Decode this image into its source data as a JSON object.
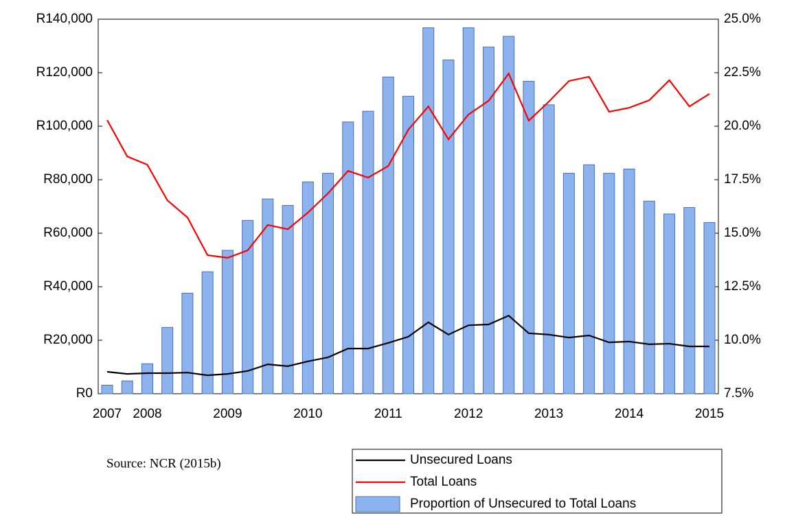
{
  "chart_data": {
    "type": "bar",
    "source": "Source: NCR (2015b)",
    "categories": [
      "2007",
      null,
      "2008",
      null,
      null,
      null,
      "2009",
      null,
      null,
      null,
      "2010",
      null,
      null,
      null,
      "2011",
      null,
      null,
      null,
      "2012",
      null,
      null,
      null,
      "2013",
      null,
      null,
      null,
      "2014",
      null,
      null,
      null,
      "2015"
    ],
    "ylim": [
      0,
      140000
    ],
    "yticks": [
      {
        "value": 0,
        "label": "R0"
      },
      {
        "value": 20000,
        "label": "R20,000"
      },
      {
        "value": 40000,
        "label": "R40,000"
      },
      {
        "value": 60000,
        "label": "R60,000"
      },
      {
        "value": 80000,
        "label": "R80,000"
      },
      {
        "value": 100000,
        "label": "R100,000"
      },
      {
        "value": 120000,
        "label": "R120,000"
      },
      {
        "value": 140000,
        "label": "R140,000"
      }
    ],
    "y2lim": [
      7.5,
      25
    ],
    "y2ticks": [
      {
        "value": 7.5,
        "label": "7.5%"
      },
      {
        "value": 10,
        "label": "10.0%"
      },
      {
        "value": 12.5,
        "label": "12.5%"
      },
      {
        "value": 15,
        "label": "15.0%"
      },
      {
        "value": 17.5,
        "label": "17.5%"
      },
      {
        "value": 20,
        "label": "20.0%"
      },
      {
        "value": 22.5,
        "label": "22.5%"
      },
      {
        "value": 25,
        "label": "25.0%"
      }
    ],
    "series": [
      {
        "name": "Unsecured Loans",
        "type": "line",
        "color": "#000000",
        "values": [
          8200,
          7400,
          7700,
          7700,
          7900,
          6900,
          7400,
          8500,
          11000,
          10300,
          12100,
          13600,
          16900,
          16900,
          19000,
          21300,
          26700,
          22100,
          25600,
          25900,
          29200,
          22600,
          22100,
          21000,
          21800,
          19200,
          19500,
          18500,
          18700,
          17700,
          17700
        ]
      },
      {
        "name": "Total Loans",
        "type": "line",
        "color": "#ff0000",
        "values": [
          102300,
          88700,
          85600,
          72300,
          65900,
          51800,
          50800,
          53600,
          63100,
          61500,
          67700,
          74900,
          83300,
          80800,
          85100,
          98700,
          107400,
          95100,
          104400,
          109500,
          119700,
          102100,
          109200,
          116900,
          118500,
          105400,
          106900,
          109700,
          117200,
          107400,
          112100
        ]
      },
      {
        "name": "Proportion of Unsecured to Total Loans",
        "type": "bar",
        "axis": "y2",
        "color": "#8db3ee",
        "values": [
          7.9,
          8.1,
          8.9,
          10.6,
          12.2,
          13.2,
          14.2,
          15.6,
          16.6,
          16.3,
          17.4,
          17.8,
          20.2,
          20.7,
          22.3,
          21.4,
          24.6,
          23.1,
          24.6,
          23.7,
          24.2,
          22.1,
          21.0,
          17.8,
          18.2,
          17.8,
          18.0,
          16.5,
          15.9,
          16.2,
          15.5
        ]
      }
    ]
  }
}
